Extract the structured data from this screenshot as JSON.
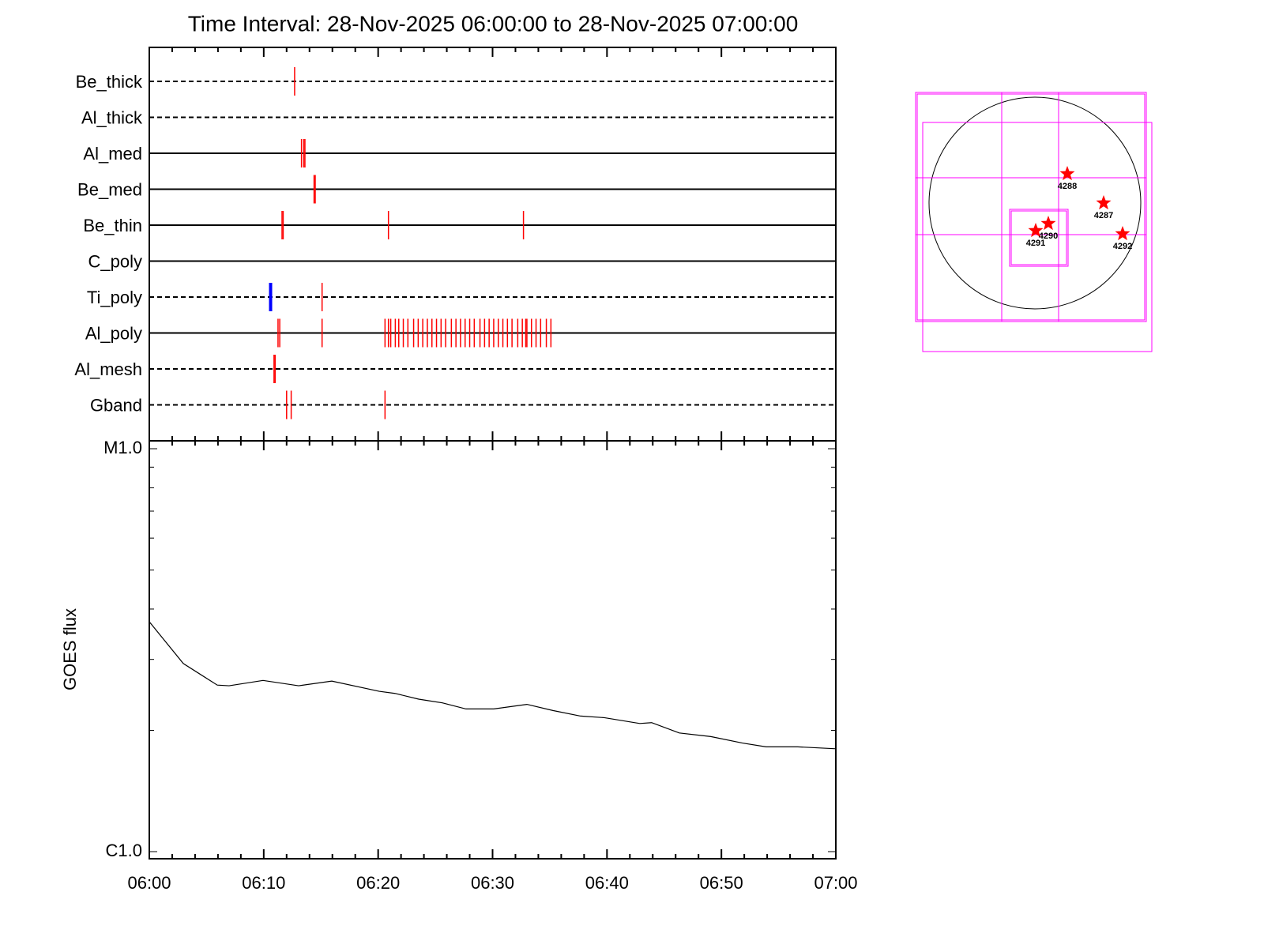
{
  "title": "Time Interval: 28-Nov-2025 06:00:00 to 28-Nov-2025 07:00:00",
  "chart_data": [
    {
      "type": "event",
      "xlim": [
        0,
        60
      ],
      "event_color": "#ff0000",
      "flag_color": "#0000ff",
      "channels": [
        {
          "name": "Be_thick",
          "line_style": "dashed",
          "events": [
            12.7
          ]
        },
        {
          "name": "Al_thick",
          "line_style": "dashed",
          "events": []
        },
        {
          "name": "Al_med",
          "line_style": "solid",
          "events": [
            13.3,
            13.5,
            13.6
          ]
        },
        {
          "name": "Be_med",
          "line_style": "solid",
          "events": [
            14.4,
            14.5
          ]
        },
        {
          "name": "Be_thin",
          "line_style": "solid",
          "events": [
            11.6,
            11.7,
            20.9,
            32.7
          ]
        },
        {
          "name": "C_poly",
          "line_style": "solid",
          "events": []
        },
        {
          "name": "Ti_poly",
          "line_style": "dashed",
          "events": [
            15.1
          ],
          "flagged": [
            10.6
          ]
        },
        {
          "name": "Al_poly",
          "line_style": "solid",
          "events": [
            11.25,
            11.4,
            15.1,
            20.6,
            20.9,
            21.1,
            21.5,
            21.8,
            22.2,
            22.6,
            23.1,
            23.5,
            23.9,
            24.3,
            24.7,
            25.1,
            25.5,
            25.9,
            26.4,
            26.8,
            27.2,
            27.6,
            28.0,
            28.4,
            28.9,
            29.3,
            29.7,
            30.1,
            30.5,
            30.9,
            31.3,
            31.7,
            32.2,
            32.6,
            32.9,
            33.0,
            33.4,
            33.8,
            34.2,
            34.7,
            35.1
          ]
        },
        {
          "name": "Al_mesh",
          "line_style": "dashed",
          "events": [
            10.9,
            11.0
          ]
        },
        {
          "name": "Gband",
          "line_style": "dashed",
          "events": [
            12.0,
            12.4,
            20.6
          ]
        }
      ]
    },
    {
      "type": "line",
      "ylabel": "GOES flux",
      "color": "#000000",
      "log_scale": true,
      "x": [
        0,
        2.97,
        5.94,
        6.97,
        9.94,
        13.05,
        15.95,
        20.09,
        21.47,
        23.54,
        25.61,
        27.68,
        30.1,
        33.0,
        35.27,
        37.69,
        39.76,
        42.87,
        43.9,
        46.32,
        49.08,
        51.84,
        53.91,
        56.67,
        60
      ],
      "values": [
        3.72e-06,
        2.93e-06,
        2.59e-06,
        2.58e-06,
        2.66e-06,
        2.58e-06,
        2.65e-06,
        2.5e-06,
        2.47e-06,
        2.39e-06,
        2.34e-06,
        2.26e-06,
        2.26e-06,
        2.32e-06,
        2.24e-06,
        2.17e-06,
        2.15e-06,
        2.08e-06,
        2.09e-06,
        1.97e-06,
        1.93e-06,
        1.86e-06,
        1.82e-06,
        1.82e-06,
        1.8e-06
      ],
      "xlim": [
        0,
        60
      ],
      "xticks": [
        {
          "value": 0,
          "label": "06:00"
        },
        {
          "value": 10,
          "label": "06:10"
        },
        {
          "value": 20,
          "label": "06:20"
        },
        {
          "value": 30,
          "label": "06:30"
        },
        {
          "value": 40,
          "label": "06:40"
        },
        {
          "value": 50,
          "label": "06:50"
        },
        {
          "value": 60,
          "label": "07:00"
        }
      ],
      "xminorticks": [
        2,
        4,
        6,
        8,
        12,
        14,
        16,
        18,
        22,
        24,
        26,
        28,
        32,
        34,
        36,
        38,
        42,
        44,
        46,
        48,
        52,
        54,
        56,
        58
      ],
      "ylim": [
        1e-06,
        1e-05
      ],
      "yticks": [
        {
          "value": 1e-05,
          "label": "M1.0"
        },
        {
          "value": 1e-06,
          "label": "C1.0"
        }
      ],
      "yminorticks": [
        2e-06,
        3e-06,
        4e-06,
        5e-06,
        6e-06,
        7e-06,
        8e-06,
        9e-06
      ]
    }
  ],
  "sun_map": {
    "regions": [
      "4288",
      "4287",
      "4290",
      "4291",
      "4292"
    ]
  }
}
